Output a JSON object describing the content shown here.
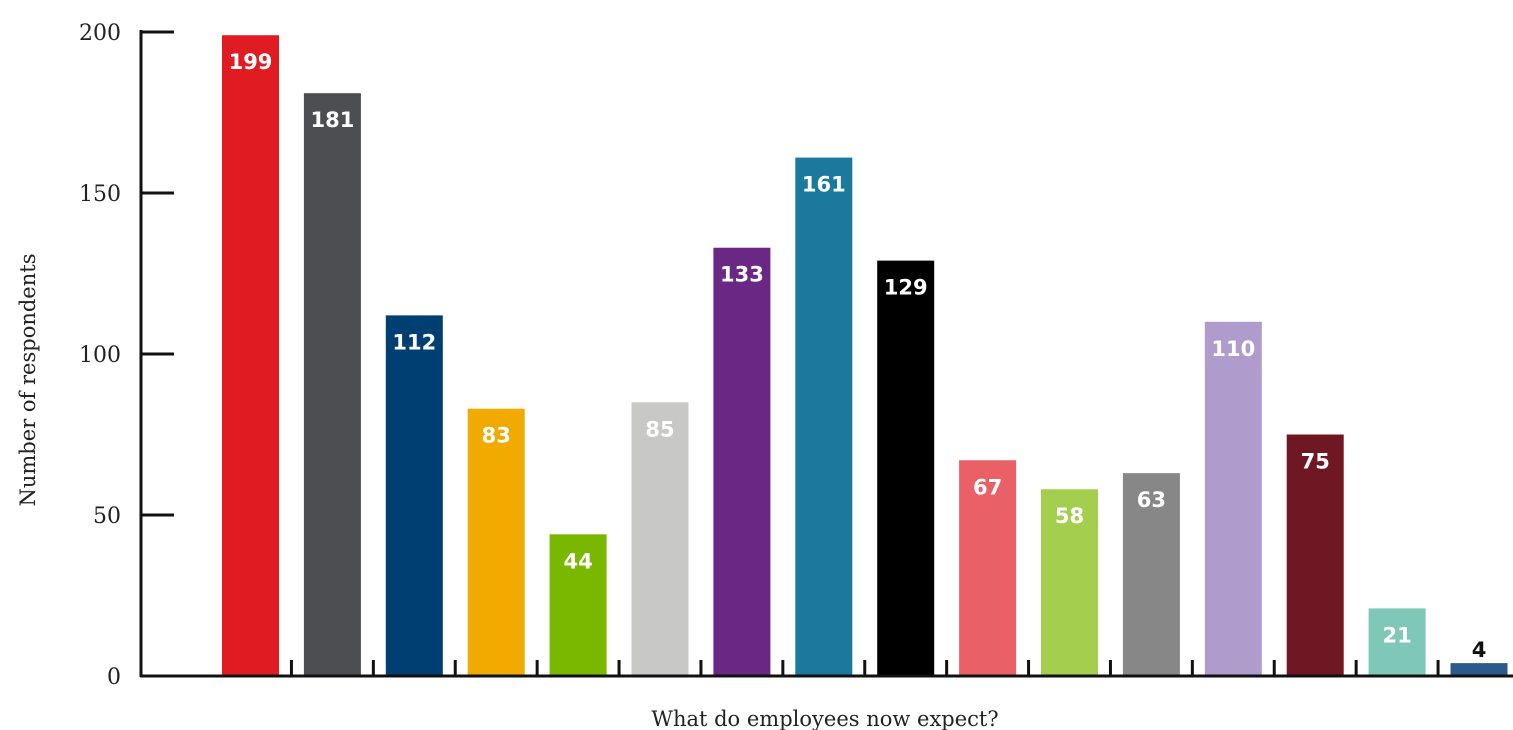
{
  "chart_data": {
    "type": "bar",
    "title": "",
    "xlabel": "What do employees now expect?",
    "ylabel": "Number of respondents",
    "ylim": [
      0,
      200
    ],
    "yticks": [
      0,
      50,
      100,
      150,
      200
    ],
    "grid": false,
    "legend": "none",
    "values": [
      199,
      181,
      112,
      83,
      44,
      85,
      133,
      161,
      129,
      67,
      58,
      63,
      110,
      75,
      21,
      4
    ],
    "colors": [
      "#e01b22",
      "#4d4e52",
      "#003f72",
      "#f0aa00",
      "#7ab800",
      "#c8c8c6",
      "#6a2784",
      "#1b799d",
      "#000000",
      "#e96066",
      "#a4ce4e",
      "#878787",
      "#b09bcd",
      "#6f1823",
      "#7fc8b7",
      "#2c5a8c"
    ],
    "label_colors": [
      "#ffffff",
      "#ffffff",
      "#ffffff",
      "#ffffff",
      "#ffffff",
      "#ffffff",
      "#ffffff",
      "#ffffff",
      "#ffffff",
      "#ffffff",
      "#ffffff",
      "#ffffff",
      "#ffffff",
      "#ffffff",
      "#ffffff",
      "#111111"
    ]
  }
}
